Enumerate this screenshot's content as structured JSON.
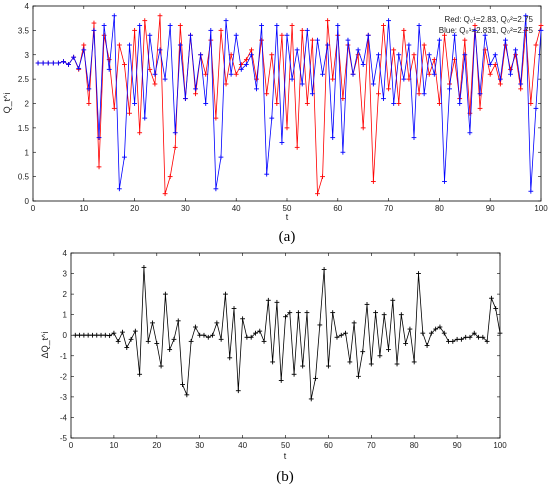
{
  "chart_data": [
    {
      "type": "line",
      "caption": "(a)",
      "xlabel": "t",
      "ylabel": "Q_t^i",
      "xlim": [
        0,
        100
      ],
      "ylim": [
        0,
        4
      ],
      "xticks": [
        0,
        10,
        20,
        30,
        40,
        50,
        60,
        70,
        80,
        90,
        100
      ],
      "yticks": [
        0,
        0.5,
        1,
        1.5,
        2,
        2.5,
        3,
        3.5,
        4
      ],
      "xtick_labels": [
        "0",
        "10",
        "20",
        "30",
        "40",
        "50",
        "60",
        "70",
        "80",
        "90",
        "100"
      ],
      "ytick_labels": [
        "0",
        "0.5",
        "1",
        "1.5",
        "2",
        "2.5",
        "3",
        "3.5",
        "4"
      ],
      "grid": false,
      "legend_position": "top-right",
      "legend": [
        {
          "text": "Red: Q₀¹=2.83, Q₀²=2.75",
          "color": "#ff0000"
        },
        {
          "text": "Blue: Q₀¹=2.831, Q₀²=2.75",
          "color": "#0000ff"
        }
      ],
      "series": [
        {
          "color": "#ff0000",
          "marker": "+",
          "x": [
            1,
            2,
            3,
            4,
            5,
            6,
            7,
            8,
            9,
            10,
            11,
            12,
            13,
            14,
            15,
            16,
            17,
            18,
            19,
            20,
            21,
            22,
            23,
            24,
            25,
            26,
            27,
            28,
            29,
            30,
            31,
            32,
            33,
            34,
            35,
            36,
            37,
            38,
            39,
            40,
            41,
            42,
            43,
            44,
            45,
            46,
            47,
            48,
            49,
            50,
            51,
            52,
            53,
            54,
            55,
            56,
            57,
            58,
            59,
            60,
            61,
            62,
            63,
            64,
            65,
            66,
            67,
            68,
            69,
            70,
            71,
            72,
            73,
            74,
            75,
            76,
            77,
            78,
            79,
            80,
            81,
            82,
            83,
            84,
            85,
            86,
            87,
            88,
            89,
            90,
            91,
            92,
            93,
            94,
            95,
            96,
            97,
            98,
            99,
            100
          ],
          "values": [
            2.83,
            2.83,
            2.83,
            2.83,
            2.83,
            2.86,
            2.8,
            2.95,
            2.7,
            3.2,
            2.0,
            3.65,
            0.7,
            3.4,
            2.9,
            1.9,
            3.2,
            2.8,
            1.8,
            3.5,
            1.4,
            3.7,
            2.7,
            2.4,
            3.8,
            0.15,
            0.5,
            1.1,
            3.6,
            2.1,
            3.4,
            2.2,
            3.0,
            2.6,
            3.3,
            1.7,
            3.5,
            2.4,
            3.0,
            2.6,
            2.8,
            2.9,
            3.1,
            2.5,
            3.3,
            2.2,
            3.0,
            2.0,
            3.4,
            1.5,
            3.6,
            1.1,
            3.5,
            2.0,
            3.3,
            0.15,
            0.5,
            3.7,
            2.5,
            3.4,
            2.1,
            3.2,
            2.6,
            3.0,
            1.5,
            3.4,
            0.4,
            2.2,
            3.6,
            2.3,
            3.1,
            2.0,
            3.5,
            2.5,
            3.0,
            2.2,
            3.2,
            2.6,
            2.9,
            2.0,
            3.4,
            2.4,
            2.9,
            2.1,
            3.3,
            1.8,
            3.6,
            1.9,
            3.1,
            2.6,
            2.8,
            2.4,
            3.2,
            2.7,
            3.0,
            2.3,
            3.5,
            2.0,
            3.2,
            3.6
          ]
        },
        {
          "color": "#0000ff",
          "marker": "+",
          "x": [
            1,
            2,
            3,
            4,
            5,
            6,
            7,
            8,
            9,
            10,
            11,
            12,
            13,
            14,
            15,
            16,
            17,
            18,
            19,
            20,
            21,
            22,
            23,
            24,
            25,
            26,
            27,
            28,
            29,
            30,
            31,
            32,
            33,
            34,
            35,
            36,
            37,
            38,
            39,
            40,
            41,
            42,
            43,
            44,
            45,
            46,
            47,
            48,
            49,
            50,
            51,
            52,
            53,
            54,
            55,
            56,
            57,
            58,
            59,
            60,
            61,
            62,
            63,
            64,
            65,
            66,
            67,
            68,
            69,
            70,
            71,
            72,
            73,
            74,
            75,
            76,
            77,
            78,
            79,
            80,
            81,
            82,
            83,
            84,
            85,
            86,
            87,
            88,
            89,
            90,
            91,
            92,
            93,
            94,
            95,
            96,
            97,
            98,
            99,
            100
          ],
          "values": [
            2.83,
            2.83,
            2.83,
            2.83,
            2.83,
            2.86,
            2.8,
            2.95,
            2.72,
            3.1,
            2.3,
            3.5,
            1.3,
            3.6,
            2.7,
            3.8,
            0.25,
            0.9,
            3.2,
            2.0,
            3.6,
            1.7,
            3.4,
            2.6,
            3.1,
            2.5,
            3.6,
            1.4,
            3.2,
            2.1,
            3.4,
            2.3,
            3.0,
            2.0,
            3.5,
            0.25,
            0.9,
            3.7,
            2.6,
            3.4,
            2.7,
            2.8,
            3.0,
            2.3,
            3.6,
            0.55,
            1.7,
            3.6,
            1.2,
            3.4,
            2.5,
            3.1,
            2.4,
            3.5,
            2.2,
            3.3,
            2.6,
            3.2,
            1.3,
            3.6,
            1.0,
            3.3,
            2.6,
            3.1,
            2.8,
            3.4,
            2.4,
            3.0,
            2.1,
            3.7,
            2.0,
            3.0,
            2.5,
            3.2,
            1.3,
            3.6,
            2.2,
            3.0,
            2.6,
            3.3,
            0.4,
            2.3,
            3.4,
            2.0,
            3.0,
            1.4,
            3.5,
            2.2,
            3.4,
            2.8,
            3.0,
            2.5,
            3.3,
            2.6,
            3.1,
            2.4,
            3.8,
            0.2,
            1.9,
            3.5
          ]
        }
      ]
    },
    {
      "type": "line",
      "caption": "(b)",
      "xlabel": "t",
      "ylabel": "ΔQ_t^i",
      "xlim": [
        0,
        100
      ],
      "ylim": [
        -5,
        4
      ],
      "xticks": [
        0,
        10,
        20,
        30,
        40,
        50,
        60,
        70,
        80,
        90,
        100
      ],
      "yticks": [
        -5,
        -4,
        -3,
        -2,
        -1,
        0,
        1,
        2,
        3,
        4
      ],
      "xtick_labels": [
        "0",
        "10",
        "20",
        "30",
        "40",
        "50",
        "60",
        "70",
        "80",
        "90",
        "100"
      ],
      "ytick_labels": [
        "-5",
        "-4",
        "-3",
        "-2",
        "-1",
        "0",
        "1",
        "2",
        "3",
        "4"
      ],
      "grid": false,
      "series": [
        {
          "color": "#000000",
          "marker": "+",
          "x": [
            1,
            2,
            3,
            4,
            5,
            6,
            7,
            8,
            9,
            10,
            11,
            12,
            13,
            14,
            15,
            16,
            17,
            18,
            19,
            20,
            21,
            22,
            23,
            24,
            25,
            26,
            27,
            28,
            29,
            30,
            31,
            32,
            33,
            34,
            35,
            36,
            37,
            38,
            39,
            40,
            41,
            42,
            43,
            44,
            45,
            46,
            47,
            48,
            49,
            50,
            51,
            52,
            53,
            54,
            55,
            56,
            57,
            58,
            59,
            60,
            61,
            62,
            63,
            64,
            65,
            66,
            67,
            68,
            69,
            70,
            71,
            72,
            73,
            74,
            75,
            76,
            77,
            78,
            79,
            80,
            81,
            82,
            83,
            84,
            85,
            86,
            87,
            88,
            89,
            90,
            91,
            92,
            93,
            94,
            95,
            96,
            97,
            98,
            99,
            100
          ],
          "values": [
            0,
            0,
            0,
            0,
            0,
            0,
            0,
            0,
            -0.02,
            0.1,
            -0.3,
            0.15,
            -0.6,
            -0.2,
            0.2,
            -1.9,
            3.3,
            -0.3,
            0.6,
            -0.4,
            -1.5,
            2.0,
            -0.7,
            -0.2,
            0.7,
            -2.4,
            -2.9,
            -0.3,
            0.4,
            0.0,
            0.0,
            -0.1,
            0.0,
            0.6,
            -0.2,
            2.0,
            -1.1,
            1.3,
            -2.7,
            0.8,
            -0.1,
            -0.1,
            0.1,
            0.2,
            -0.3,
            1.7,
            -1.3,
            1.6,
            -2.2,
            0.9,
            1.1,
            -1.9,
            1.1,
            -1.5,
            1.1,
            -3.1,
            -2.1,
            0.5,
            3.2,
            -1.5,
            1.1,
            -0.1,
            0.0,
            0.1,
            -1.3,
            0.6,
            -2.0,
            -0.8,
            1.5,
            -1.4,
            1.1,
            -1.0,
            1.0,
            -0.7,
            1.7,
            -1.4,
            1.0,
            -0.4,
            0.3,
            -1.3,
            3.0,
            0.1,
            -0.5,
            0.1,
            0.3,
            0.4,
            0.1,
            -0.3,
            -0.3,
            -0.2,
            -0.2,
            -0.1,
            -0.1,
            0.1,
            -0.1,
            -0.1,
            -0.3,
            1.8,
            1.3,
            0.1
          ]
        }
      ]
    }
  ]
}
